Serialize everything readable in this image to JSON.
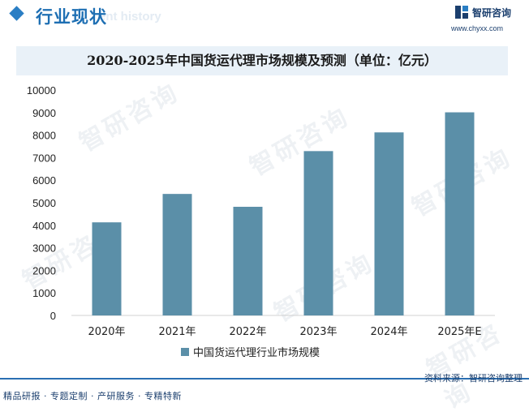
{
  "header": {
    "title": "行业现状",
    "subtitle_en": "ent history"
  },
  "brand": {
    "name": "智研咨询",
    "url": "www.chyxx.com",
    "watermark": "智研咨询"
  },
  "source_text": "资料来源：智研咨询整理",
  "footer_text": "精品研报 · 专题定制 · 产研服务 · 专精特新",
  "colors": {
    "bar": "#5b8fa8",
    "accent": "#2a7ec4",
    "title_bg": "#e9f1f8"
  },
  "chart_data": {
    "type": "bar",
    "title": "2020-2025年中国货运代理市场规模及预测（单位：亿元）",
    "categories": [
      "2020年",
      "2021年",
      "2022年",
      "2023年",
      "2024年",
      "2025年E"
    ],
    "series": [
      {
        "name": "中国货运代理行业市场规模",
        "values": [
          4130,
          5390,
          4820,
          7290,
          8120,
          9010
        ]
      }
    ],
    "ylim": [
      0,
      10000
    ],
    "yticks": [
      0,
      1000,
      2000,
      3000,
      4000,
      5000,
      6000,
      7000,
      8000,
      9000,
      10000
    ],
    "grid": false,
    "legend": "bottom"
  }
}
